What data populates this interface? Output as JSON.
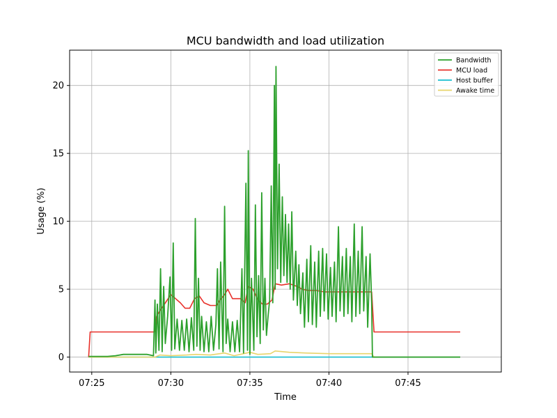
{
  "chart_data": {
    "type": "line",
    "title": "MCU bandwidth and load utilization",
    "xlabel": "Time",
    "ylabel": "Usage (%)",
    "x_ticks": [
      "07:25",
      "07:30",
      "07:35",
      "07:40",
      "07:45"
    ],
    "y_ticks": [
      0,
      5,
      10,
      15,
      20
    ],
    "xlim_minutes": [
      23.6,
      50.9
    ],
    "ylim": [
      -1.1,
      22.6
    ],
    "grid": true,
    "legend_position": "top-right",
    "series": [
      {
        "name": "Bandwidth",
        "color": "#2ca02c",
        "points": [
          [
            24.8,
            0.05
          ],
          [
            26.0,
            0.05
          ],
          [
            26.5,
            0.1
          ],
          [
            27.0,
            0.2
          ],
          [
            27.5,
            0.2
          ],
          [
            28.0,
            0.2
          ],
          [
            28.5,
            0.2
          ],
          [
            28.9,
            0.1
          ],
          [
            29.0,
            4.2
          ],
          [
            29.05,
            0.3
          ],
          [
            29.15,
            3.9
          ],
          [
            29.25,
            0.5
          ],
          [
            29.35,
            6.5
          ],
          [
            29.45,
            0.4
          ],
          [
            29.55,
            5.2
          ],
          [
            29.65,
            1.0
          ],
          [
            29.8,
            3.0
          ],
          [
            29.95,
            5.9
          ],
          [
            30.05,
            0.5
          ],
          [
            30.15,
            8.4
          ],
          [
            30.25,
            0.6
          ],
          [
            30.4,
            2.8
          ],
          [
            30.55,
            0.5
          ],
          [
            30.7,
            2.7
          ],
          [
            30.85,
            0.5
          ],
          [
            31.0,
            2.8
          ],
          [
            31.15,
            0.4
          ],
          [
            31.3,
            2.9
          ],
          [
            31.45,
            0.5
          ],
          [
            31.55,
            10.2
          ],
          [
            31.65,
            0.8
          ],
          [
            31.75,
            5.8
          ],
          [
            31.85,
            0.5
          ],
          [
            31.95,
            3.0
          ],
          [
            32.1,
            0.4
          ],
          [
            32.25,
            2.6
          ],
          [
            32.4,
            0.4
          ],
          [
            32.55,
            3.0
          ],
          [
            32.7,
            0.5
          ],
          [
            32.85,
            2.4
          ],
          [
            32.95,
            6.5
          ],
          [
            33.05,
            0.6
          ],
          [
            33.15,
            7.0
          ],
          [
            33.3,
            0.4
          ],
          [
            33.4,
            11.1
          ],
          [
            33.5,
            1.0
          ],
          [
            33.6,
            2.8
          ],
          [
            33.75,
            0.4
          ],
          [
            33.9,
            2.6
          ],
          [
            34.05,
            0.4
          ],
          [
            34.2,
            2.7
          ],
          [
            34.35,
            0.4
          ],
          [
            34.5,
            6.5
          ],
          [
            34.6,
            0.3
          ],
          [
            34.75,
            12.8
          ],
          [
            34.85,
            0.5
          ],
          [
            34.9,
            15.2
          ],
          [
            35.0,
            0.2
          ],
          [
            35.1,
            5.8
          ],
          [
            35.25,
            0.5
          ],
          [
            35.35,
            11.2
          ],
          [
            35.45,
            1.5
          ],
          [
            35.55,
            6.0
          ],
          [
            35.65,
            1.0
          ],
          [
            35.75,
            12.1
          ],
          [
            35.85,
            2.0
          ],
          [
            35.95,
            5.8
          ],
          [
            36.05,
            1.6
          ],
          [
            36.15,
            3.0
          ],
          [
            36.25,
            4.2
          ],
          [
            36.35,
            12.6
          ],
          [
            36.45,
            4.0
          ],
          [
            36.55,
            20.0
          ],
          [
            36.6,
            5.0
          ],
          [
            36.65,
            21.4
          ],
          [
            36.75,
            6.5
          ],
          [
            36.85,
            14.2
          ],
          [
            36.95,
            5.5
          ],
          [
            37.05,
            11.8
          ],
          [
            37.15,
            6.0
          ],
          [
            37.25,
            10.5
          ],
          [
            37.35,
            5.5
          ],
          [
            37.45,
            9.8
          ],
          [
            37.55,
            5.0
          ],
          [
            37.65,
            10.7
          ],
          [
            37.75,
            4.2
          ],
          [
            37.9,
            7.8
          ],
          [
            38.0,
            3.8
          ],
          [
            38.1,
            6.8
          ],
          [
            38.2,
            3.2
          ],
          [
            38.35,
            6.2
          ],
          [
            38.45,
            2.2
          ],
          [
            38.6,
            7.2
          ],
          [
            38.7,
            2.6
          ],
          [
            38.85,
            8.2
          ],
          [
            38.95,
            2.4
          ],
          [
            39.1,
            7.0
          ],
          [
            39.2,
            2.2
          ],
          [
            39.35,
            7.8
          ],
          [
            39.45,
            3.0
          ],
          [
            39.6,
            8.0
          ],
          [
            39.7,
            3.4
          ],
          [
            39.85,
            7.6
          ],
          [
            39.95,
            2.8
          ],
          [
            40.1,
            6.6
          ],
          [
            40.2,
            3.0
          ],
          [
            40.35,
            7.0
          ],
          [
            40.45,
            2.6
          ],
          [
            40.6,
            9.6
          ],
          [
            40.7,
            3.4
          ],
          [
            40.85,
            7.4
          ],
          [
            40.95,
            3.0
          ],
          [
            41.1,
            8.0
          ],
          [
            41.2,
            3.2
          ],
          [
            41.35,
            7.4
          ],
          [
            41.45,
            2.6
          ],
          [
            41.6,
            9.8
          ],
          [
            41.7,
            3.0
          ],
          [
            41.85,
            7.8
          ],
          [
            41.95,
            3.2
          ],
          [
            42.1,
            9.6
          ],
          [
            42.2,
            3.4
          ],
          [
            42.35,
            7.4
          ],
          [
            42.45,
            2.2
          ],
          [
            42.6,
            7.6
          ],
          [
            42.7,
            4.0
          ],
          [
            42.75,
            0.0
          ],
          [
            48.3,
            0.0
          ]
        ]
      },
      {
        "name": "MCU load",
        "color": "#e8302a",
        "points": [
          [
            24.8,
            0.0
          ],
          [
            24.9,
            1.85
          ],
          [
            28.9,
            1.85
          ],
          [
            29.0,
            1.9
          ],
          [
            29.1,
            3.0
          ],
          [
            29.3,
            3.4
          ],
          [
            29.6,
            3.9
          ],
          [
            30.0,
            4.6
          ],
          [
            30.3,
            4.3
          ],
          [
            30.6,
            4.0
          ],
          [
            30.9,
            3.6
          ],
          [
            31.2,
            3.6
          ],
          [
            31.5,
            4.3
          ],
          [
            31.8,
            4.5
          ],
          [
            32.1,
            4.0
          ],
          [
            32.5,
            3.8
          ],
          [
            32.9,
            3.8
          ],
          [
            33.1,
            4.2
          ],
          [
            33.4,
            4.6
          ],
          [
            33.6,
            5.0
          ],
          [
            33.9,
            4.3
          ],
          [
            34.4,
            4.3
          ],
          [
            34.7,
            4.0
          ],
          [
            34.9,
            5.2
          ],
          [
            35.2,
            5.0
          ],
          [
            35.5,
            4.2
          ],
          [
            35.8,
            3.9
          ],
          [
            36.1,
            3.9
          ],
          [
            36.4,
            4.2
          ],
          [
            36.6,
            5.4
          ],
          [
            37.0,
            5.3
          ],
          [
            37.5,
            5.4
          ],
          [
            38.0,
            5.2
          ],
          [
            38.3,
            5.0
          ],
          [
            38.7,
            4.9
          ],
          [
            39.2,
            4.9
          ],
          [
            39.7,
            4.8
          ],
          [
            40.5,
            4.8
          ],
          [
            41.3,
            4.8
          ],
          [
            42.0,
            4.8
          ],
          [
            42.7,
            4.8
          ],
          [
            42.85,
            1.85
          ],
          [
            48.3,
            1.85
          ]
        ]
      },
      {
        "name": "Host buffer",
        "color": "#17becf",
        "points": [
          [
            24.8,
            0.0
          ],
          [
            48.3,
            0.0
          ]
        ]
      },
      {
        "name": "Awake time",
        "color": "#e8d46a",
        "points": [
          [
            24.8,
            0.0
          ],
          [
            29.0,
            0.0
          ],
          [
            29.3,
            0.15
          ],
          [
            30.0,
            0.1
          ],
          [
            31.0,
            0.15
          ],
          [
            31.6,
            0.2
          ],
          [
            32.5,
            0.15
          ],
          [
            33.4,
            0.3
          ],
          [
            34.0,
            0.1
          ],
          [
            35.0,
            0.35
          ],
          [
            35.5,
            0.2
          ],
          [
            36.3,
            0.25
          ],
          [
            36.6,
            0.45
          ],
          [
            37.5,
            0.35
          ],
          [
            38.5,
            0.3
          ],
          [
            40.0,
            0.25
          ],
          [
            42.7,
            0.25
          ],
          [
            42.85,
            0.0
          ],
          [
            48.3,
            0.0
          ]
        ]
      }
    ]
  }
}
